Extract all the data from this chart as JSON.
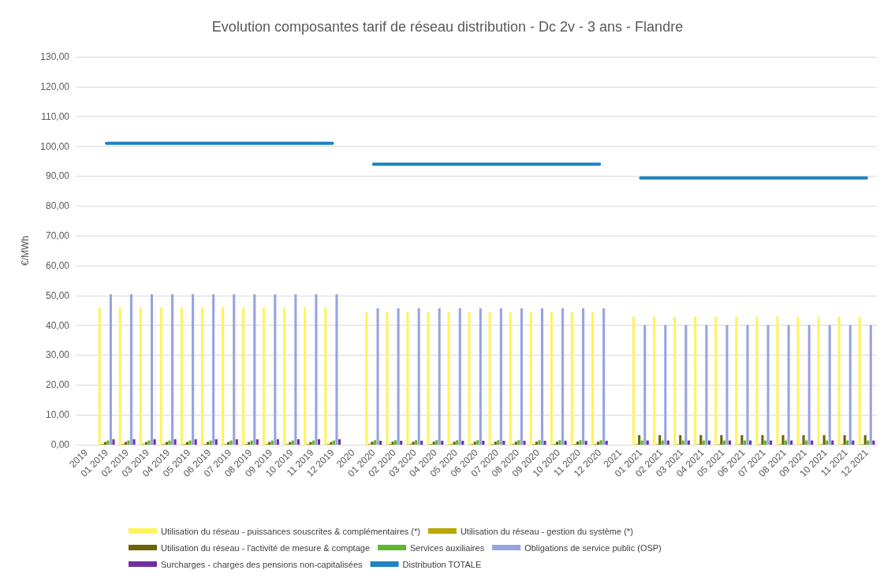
{
  "chart_data": {
    "type": "bar",
    "title": "Evolution composantes tarif de réseau distribution - Dc 2v - 3 ans - Flandre",
    "ylabel": "€/MWh",
    "categories": [
      "2019",
      "01 2019",
      "02 2019",
      "03 2019",
      "04 2019",
      "05 2019",
      "06 2019",
      "07 2019",
      "08 2019",
      "09 2019",
      "10 2019",
      "11 2019",
      "12 2019",
      "2020",
      "01 2020",
      "02 2020",
      "03 2020",
      "04 2020",
      "05 2020",
      "06 2020",
      "07 2020",
      "08 2020",
      "09 2020",
      "10 2020",
      "11 2020",
      "12 2020",
      "2021",
      "01 2021",
      "02 2021",
      "03 2021",
      "04 2021",
      "05 2021",
      "06 2021",
      "07 2021",
      "08 2021",
      "09 2021",
      "10 2021",
      "11 2021",
      "12 2021"
    ],
    "series": [
      {
        "name": "Utilisation du réseau - puissances souscrites & complémentaires (*)",
        "color": "#fff35c",
        "values": [
          null,
          46.0,
          46.0,
          46.0,
          46.0,
          46.0,
          46.0,
          46.0,
          46.0,
          46.0,
          46.0,
          46.0,
          46.0,
          null,
          44.4,
          44.4,
          44.4,
          44.4,
          44.4,
          44.4,
          44.4,
          44.4,
          44.4,
          44.4,
          44.4,
          44.4,
          null,
          42.9,
          42.9,
          42.9,
          42.9,
          42.9,
          42.9,
          42.9,
          42.9,
          42.9,
          42.9,
          42.9,
          42.9
        ]
      },
      {
        "name": "Utilisation du réseau - gestion du système (*)",
        "color": "#b8a800",
        "values": [
          null,
          0.3,
          0.3,
          0.3,
          0.3,
          0.3,
          0.3,
          0.3,
          0.3,
          0.3,
          0.3,
          0.3,
          0.3,
          null,
          0.3,
          0.3,
          0.3,
          0.3,
          0.3,
          0.3,
          0.3,
          0.3,
          0.3,
          0.3,
          0.3,
          0.3,
          null,
          0.2,
          0.2,
          0.2,
          0.2,
          0.2,
          0.2,
          0.2,
          0.2,
          0.2,
          0.2,
          0.2,
          0.2
        ]
      },
      {
        "name": "Utilisation du réseau - l'activité de mesure & comptage",
        "color": "#6b6500",
        "values": [
          null,
          0.9,
          0.9,
          0.9,
          0.9,
          0.9,
          0.9,
          0.9,
          0.9,
          0.9,
          0.9,
          0.9,
          0.9,
          null,
          1.0,
          1.0,
          1.0,
          1.0,
          1.0,
          1.0,
          1.0,
          1.0,
          1.0,
          1.0,
          1.0,
          1.0,
          null,
          3.2,
          3.2,
          3.2,
          3.2,
          3.2,
          3.2,
          3.2,
          3.2,
          3.2,
          3.2,
          3.2,
          3.2
        ]
      },
      {
        "name": "Services auxiliaires",
        "color": "#5db82e",
        "values": [
          null,
          1.4,
          1.4,
          1.4,
          1.4,
          1.4,
          1.4,
          1.4,
          1.4,
          1.4,
          1.4,
          1.4,
          1.4,
          null,
          1.5,
          1.5,
          1.5,
          1.5,
          1.5,
          1.5,
          1.5,
          1.5,
          1.5,
          1.5,
          1.5,
          1.5,
          null,
          1.4,
          1.4,
          1.4,
          1.4,
          1.4,
          1.4,
          1.4,
          1.4,
          1.4,
          1.4,
          1.4,
          1.4
        ]
      },
      {
        "name": "Obligations de service public (OSP)",
        "color": "#98a3e0",
        "values": [
          null,
          50.4,
          50.4,
          50.4,
          50.4,
          50.4,
          50.4,
          50.4,
          50.4,
          50.4,
          50.4,
          50.4,
          50.4,
          null,
          45.7,
          45.7,
          45.7,
          45.7,
          45.7,
          45.7,
          45.7,
          45.7,
          45.7,
          45.7,
          45.7,
          45.7,
          null,
          40.1,
          40.1,
          40.1,
          40.1,
          40.1,
          40.1,
          40.1,
          40.1,
          40.1,
          40.1,
          40.1,
          40.1
        ]
      },
      {
        "name": "Surcharges - charges des pensions non-capitalisées",
        "color": "#7030a0",
        "values": [
          null,
          1.8,
          1.8,
          1.8,
          1.8,
          1.8,
          1.8,
          1.8,
          1.8,
          1.8,
          1.8,
          1.8,
          1.8,
          null,
          1.3,
          1.3,
          1.3,
          1.3,
          1.3,
          1.3,
          1.3,
          1.3,
          1.3,
          1.3,
          1.3,
          1.3,
          null,
          1.4,
          1.4,
          1.4,
          1.4,
          1.4,
          1.4,
          1.4,
          1.4,
          1.4,
          1.4,
          1.4,
          1.4
        ]
      },
      {
        "name": "Distribution TOTALE",
        "type": "line",
        "color": "#1f82c0",
        "values": [
          null,
          101.0,
          101.0,
          101.0,
          101.0,
          101.0,
          101.0,
          101.0,
          101.0,
          101.0,
          101.0,
          101.0,
          101.0,
          null,
          94.0,
          94.0,
          94.0,
          94.0,
          94.0,
          94.0,
          94.0,
          94.0,
          94.0,
          94.0,
          94.0,
          94.0,
          null,
          89.4,
          89.4,
          89.4,
          89.4,
          89.4,
          89.4,
          89.4,
          89.4,
          89.4,
          89.4,
          89.4,
          89.4
        ]
      }
    ],
    "ylim": [
      0,
      130
    ],
    "yticks": [
      {
        "value": 0,
        "label": "0,00"
      },
      {
        "value": 10,
        "label": "10,00"
      },
      {
        "value": 20,
        "label": "20,00"
      },
      {
        "value": 30,
        "label": "30,00"
      },
      {
        "value": 40,
        "label": "40,00"
      },
      {
        "value": 50,
        "label": "50,00"
      },
      {
        "value": 60,
        "label": "60,00"
      },
      {
        "value": 70,
        "label": "70,00"
      },
      {
        "value": 80,
        "label": "80,00"
      },
      {
        "value": 90,
        "label": "90,00"
      },
      {
        "value": 100,
        "label": "100,00"
      },
      {
        "value": 110,
        "label": "110,00"
      },
      {
        "value": 120,
        "label": "120,00"
      },
      {
        "value": 130,
        "label": "130,00"
      }
    ],
    "grid": "y",
    "legend": "bottom",
    "marker": "none",
    "line_style": "solid"
  }
}
